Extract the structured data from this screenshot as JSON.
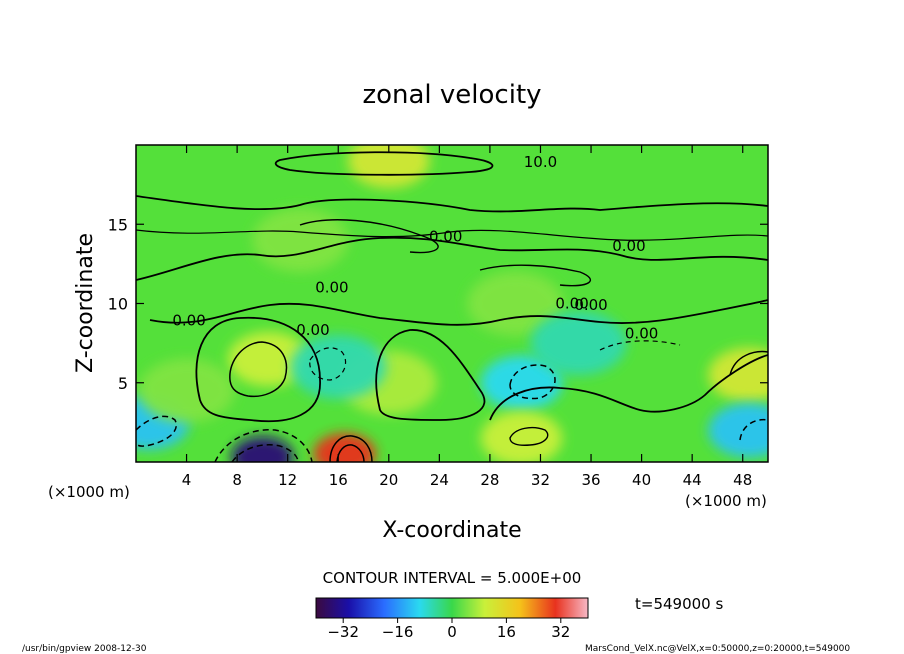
{
  "chart_data": {
    "type": "contour",
    "title": "zonal velocity",
    "xlabel": "X-coordinate",
    "ylabel": "Z-coordinate",
    "x_units": "(×1000 m)",
    "y_units": "(×1000 m)",
    "xlim": [
      0,
      50
    ],
    "ylim": [
      0,
      20
    ],
    "x_ticks": [
      4,
      8,
      12,
      16,
      20,
      24,
      28,
      32,
      36,
      40,
      44,
      48
    ],
    "y_ticks": [
      5,
      10,
      15
    ],
    "contour_interval_text": "CONTOUR INTERVAL = 5.000E+00",
    "contour_labels": [
      "10.0",
      "0.00",
      "0.00",
      "0.00",
      "0.00",
      "0.00",
      "0.00",
      "0.00",
      "0.00"
    ],
    "colorbar": {
      "range": [
        -40,
        40
      ],
      "ticks": [
        -32,
        -16,
        0,
        16,
        32
      ]
    },
    "time_text": "t=549000 s",
    "features": [
      {
        "x": 10,
        "z": 0.3,
        "value": -35
      },
      {
        "x": 16.5,
        "z": 0.5,
        "value": 30
      },
      {
        "x": 10.5,
        "z": 6.5,
        "value": 10
      },
      {
        "x": 48.5,
        "z": 5.5,
        "value": 12
      },
      {
        "x": 20,
        "z": 5,
        "value": 8
      },
      {
        "x": 30.5,
        "z": 5,
        "value": -10
      },
      {
        "x": 1,
        "z": 2.5,
        "value": -12
      },
      {
        "x": 48.5,
        "z": 2,
        "value": -12
      },
      {
        "x": 16,
        "z": 6,
        "value": -6
      },
      {
        "x": 20,
        "z": 19,
        "value": 12
      },
      {
        "x": 13,
        "z": 14,
        "value": 5
      },
      {
        "x": 30,
        "z": 10,
        "value": 5
      },
      {
        "x": 35,
        "z": 7.5,
        "value": -6
      },
      {
        "x": 30.5,
        "z": 1.5,
        "value": 10
      },
      {
        "x": 4,
        "z": 4.5,
        "value": 5
      }
    ]
  },
  "footer": {
    "left": "/usr/bin/gpview   2008-12-30",
    "right": "MarsCond_VelX.nc@VelX,x=0:50000,z=0:20000,t=549000"
  }
}
